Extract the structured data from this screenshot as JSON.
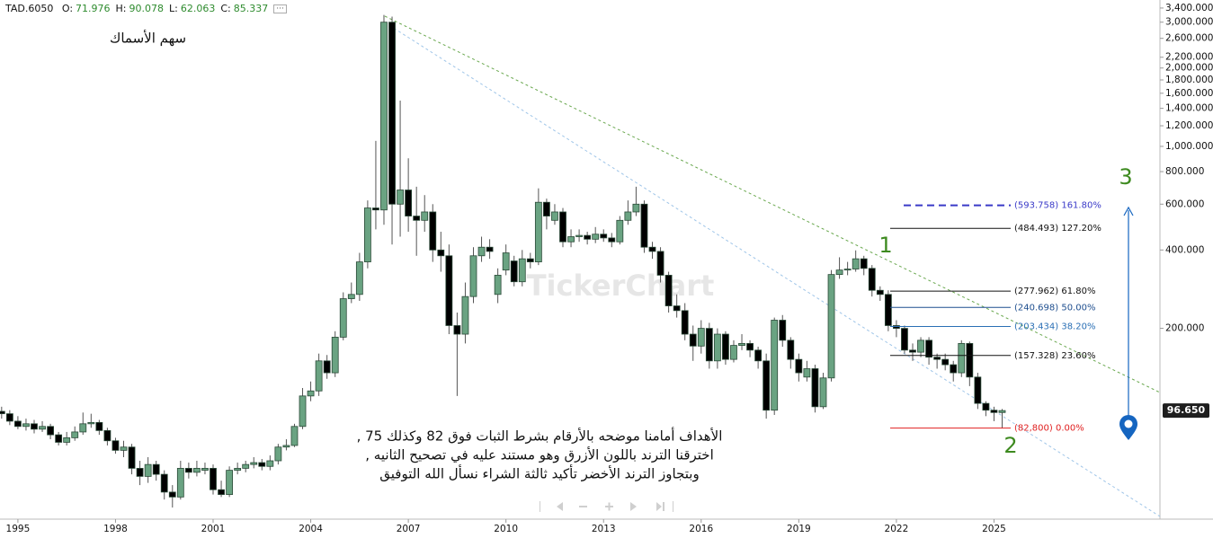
{
  "header": {
    "symbol": "TAD.6050",
    "items": [
      {
        "label": "O:",
        "value": 71.976
      },
      {
        "label": "H:",
        "value": 90.078
      },
      {
        "label": "L:",
        "value": 62.063
      },
      {
        "label": "C:",
        "value": 85.337
      }
    ]
  },
  "chart_data": {
    "type": "candlestick",
    "title": "سهم الأسماك",
    "watermark": "TickerChart",
    "log_scale": true,
    "up_color": "#6aa382",
    "down_color": "#000000",
    "x": [
      1994.5,
      1994.75,
      1995,
      1995.25,
      1995.5,
      1995.75,
      1996,
      1996.25,
      1996.5,
      1996.75,
      1997,
      1997.25,
      1997.5,
      1997.75,
      1998,
      1998.25,
      1998.5,
      1998.75,
      1999,
      1999.25,
      1999.5,
      1999.75,
      2000,
      2000.25,
      2000.5,
      2000.75,
      2001,
      2001.25,
      2001.5,
      2001.75,
      2002,
      2002.25,
      2002.5,
      2002.75,
      2003,
      2003.25,
      2003.5,
      2003.75,
      2004,
      2004.25,
      2004.5,
      2004.75,
      2005,
      2005.25,
      2005.5,
      2005.75,
      2006,
      2006.25,
      2006.5,
      2006.75,
      2007,
      2007.25,
      2007.5,
      2007.75,
      2008,
      2008.25,
      2008.5,
      2008.75,
      2009,
      2009.25,
      2009.5,
      2009.75,
      2010,
      2010.25,
      2010.5,
      2010.75,
      2011,
      2011.25,
      2011.5,
      2011.75,
      2012,
      2012.25,
      2012.5,
      2012.75,
      2013,
      2013.25,
      2013.5,
      2013.75,
      2014,
      2014.25,
      2014.5,
      2014.75,
      2015,
      2015.25,
      2015.5,
      2015.75,
      2016,
      2016.25,
      2016.5,
      2016.75,
      2017,
      2017.25,
      2017.5,
      2017.75,
      2018,
      2018.25,
      2018.5,
      2018.75,
      2019,
      2019.25,
      2019.5,
      2019.75,
      2020,
      2020.25,
      2020.5,
      2020.75,
      2021,
      2021.25,
      2021.5,
      2021.75,
      2022,
      2022.25,
      2022.5,
      2022.75,
      2023,
      2023.25,
      2023.5,
      2023.75,
      2024,
      2024.25,
      2024.5,
      2024.75,
      2025,
      2025.25
    ],
    "open": [
      96,
      94,
      88,
      84,
      86,
      82,
      84,
      78,
      73,
      76,
      80,
      86,
      87,
      81,
      74,
      68,
      70,
      58,
      54,
      60,
      55,
      47,
      45,
      58,
      56,
      57,
      58,
      48,
      46,
      57,
      58,
      60,
      61,
      59,
      62,
      70,
      71,
      84,
      110,
      115,
      150,
      135,
      185,
      260,
      270,
      360,
      580,
      570,
      3000,
      600,
      680,
      540,
      520,
      560,
      400,
      380,
      205,
      190,
      265,
      380,
      410,
      270,
      335,
      363,
      302,
      370,
      360,
      610,
      520,
      560,
      430,
      450,
      455,
      440,
      460,
      445,
      430,
      520,
      560,
      600,
      410,
      395,
      320,
      244,
      234,
      190,
      171,
      200,
      150,
      190,
      152,
      172,
      175,
      165,
      150,
      97,
      215,
      180,
      152,
      130,
      140,
      100,
      129,
      322,
      335,
      338,
      370,
      340,
      280,
      270,
      205,
      200,
      165,
      162,
      180,
      155,
      152,
      145,
      135,
      175,
      130,
      103,
      97,
      95
    ],
    "high": [
      100,
      97,
      92,
      90,
      89,
      88,
      86,
      80,
      80,
      84,
      95,
      94,
      89,
      83,
      76,
      74,
      72,
      62,
      64,
      62,
      57,
      50,
      62,
      61,
      62,
      61,
      60,
      52,
      59,
      61,
      62,
      64,
      63,
      65,
      72,
      75,
      86,
      118,
      125,
      160,
      158,
      195,
      275,
      300,
      390,
      620,
      1050,
      3200,
      3150,
      1500,
      900,
      700,
      650,
      600,
      470,
      420,
      230,
      300,
      410,
      450,
      440,
      340,
      420,
      380,
      400,
      390,
      690,
      630,
      600,
      580,
      480,
      480,
      470,
      490,
      480,
      465,
      540,
      620,
      700,
      620,
      430,
      410,
      330,
      270,
      250,
      205,
      215,
      210,
      200,
      195,
      180,
      190,
      180,
      170,
      160,
      220,
      225,
      185,
      160,
      150,
      145,
      135,
      335,
      375,
      360,
      398.6,
      380,
      350,
      290,
      280,
      215,
      205,
      175,
      185,
      185,
      160,
      160,
      150,
      180,
      178,
      135,
      105,
      100,
      98
    ],
    "low": [
      90,
      85,
      82,
      81,
      79,
      80,
      75,
      71,
      71,
      74,
      78,
      83,
      78,
      71,
      66,
      64,
      55,
      50,
      51,
      52,
      44,
      41,
      44,
      53,
      54,
      55,
      46,
      45,
      45,
      55,
      56,
      58,
      57,
      57,
      60,
      68,
      70,
      82,
      105,
      110,
      128,
      130,
      180,
      250,
      255,
      340,
      480,
      500,
      420,
      450,
      470,
      380,
      470,
      360,
      330,
      190,
      110,
      175,
      250,
      360,
      370,
      250,
      320,
      290,
      290,
      340,
      350,
      480,
      500,
      410,
      410,
      430,
      420,
      425,
      430,
      410,
      420,
      500,
      540,
      390,
      370,
      300,
      230,
      220,
      180,
      150,
      160,
      140,
      140,
      145,
      148,
      165,
      155,
      140,
      90,
      93,
      170,
      140,
      125,
      125,
      95,
      98,
      125,
      310,
      320,
      330,
      320,
      265,
      255,
      195,
      185,
      160,
      150,
      155,
      145,
      140,
      138,
      125,
      130,
      120,
      98,
      92,
      88,
      82.8
    ],
    "close": [
      94,
      88,
      84,
      86,
      82,
      84,
      78,
      73,
      76,
      80,
      86,
      87,
      81,
      74,
      68,
      70,
      58,
      54,
      60,
      55,
      47,
      45,
      58,
      56,
      58,
      58,
      48,
      46,
      57,
      58,
      60,
      61,
      59,
      62,
      70,
      71,
      84,
      110,
      115,
      150,
      135,
      185,
      260,
      270,
      360,
      580,
      570,
      3000,
      600,
      680,
      540,
      520,
      560,
      400,
      380,
      205,
      190,
      265,
      380,
      410,
      395,
      320,
      390,
      302,
      370,
      360,
      610,
      540,
      560,
      430,
      450,
      455,
      440,
      460,
      445,
      430,
      520,
      560,
      600,
      410,
      395,
      320,
      244,
      234,
      190,
      171,
      200,
      150,
      190,
      152,
      172,
      175,
      165,
      150,
      97,
      215,
      180,
      152,
      135,
      140,
      100,
      129,
      322,
      335,
      338,
      370,
      340,
      280,
      270,
      205,
      200,
      165,
      162,
      180,
      155,
      152,
      145,
      135,
      175,
      130,
      103,
      97,
      95,
      96.65
    ],
    "xlim": [
      1994.45,
      2030.1
    ],
    "xticks": [
      1995,
      1998,
      2001,
      2004,
      2007,
      2010,
      2013,
      2016,
      2019,
      2022,
      2025
    ],
    "ylim": [
      37,
      3650
    ],
    "yticks": [
      {
        "value": 3400,
        "label": "3,400.000"
      },
      {
        "value": 3000,
        "label": "3,000.000"
      },
      {
        "value": 2600,
        "label": "2,600.000"
      },
      {
        "value": 2200,
        "label": "2,200.000"
      },
      {
        "value": 2000,
        "label": "2,000.000"
      },
      {
        "value": 1800,
        "label": "1,800.000"
      },
      {
        "value": 1600,
        "label": "1,600.000"
      },
      {
        "value": 1400,
        "label": "1,400.000"
      },
      {
        "value": 1200,
        "label": "1,200.000"
      },
      {
        "value": 1000,
        "label": "1,000.000"
      },
      {
        "value": 800,
        "label": "800.000"
      },
      {
        "value": 600,
        "label": "600.000"
      },
      {
        "value": 400,
        "label": "400.000"
      },
      {
        "value": 200,
        "label": "200.000"
      }
    ],
    "last_price": {
      "value": 96.65,
      "label": "96.650"
    },
    "fibonacci": [
      {
        "price": 593.758,
        "label": "(593.758) 161.80%",
        "color": "#3a3ac8"
      },
      {
        "price": 484.493,
        "label": "(484.493) 127.20%",
        "color": "#111111"
      },
      {
        "price": 277.962,
        "label": "(277.962) 61.80%",
        "color": "#111111"
      },
      {
        "price": 240.698,
        "label": "(240.698) 50.00%",
        "color": "#1f4f8f"
      },
      {
        "price": 203.434,
        "label": "(203.434) 38.20%",
        "color": "#2a6fb5"
      },
      {
        "price": 157.328,
        "label": "(157.328) 23.60%",
        "color": "#111111"
      },
      {
        "price": 82.8,
        "label": "(82,800) 0.00%",
        "color": "#e02020"
      }
    ],
    "wave_labels": [
      "1",
      "2",
      "3"
    ],
    "note": [
      "الأهداف أمامنا موضحه بالأرقام بشرط الثبات فوق 82 وكذلك 75 ,",
      "اخترقنا الترند باللون الأزرق وهو مستند عليه في تصحيح الثانيه ,",
      "وبتجاوز الترند الأخضر تأكيد ثالثة الشراء نسأل الله التوفيق"
    ]
  }
}
